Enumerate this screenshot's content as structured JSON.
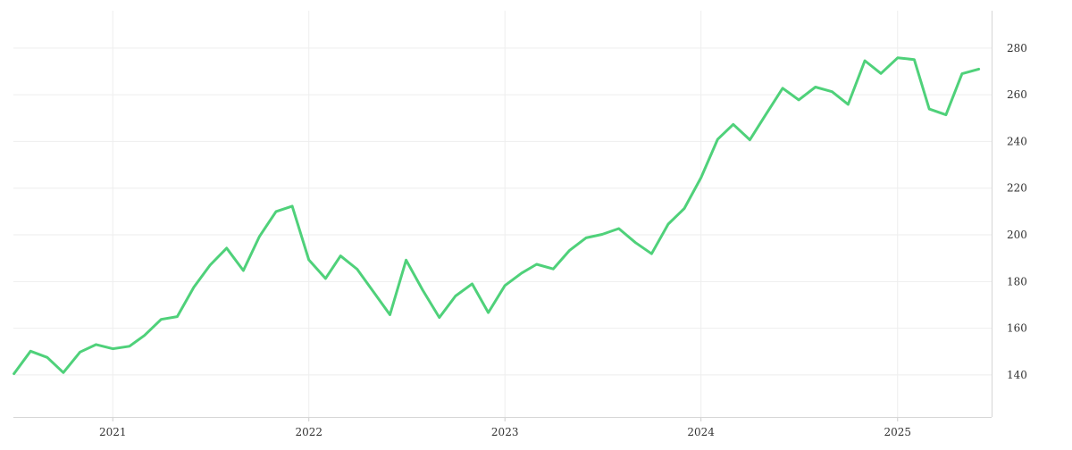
{
  "chart_data": {
    "type": "line",
    "title": "",
    "xlabel": "",
    "ylabel": "",
    "x_ticks": [
      "2021",
      "2022",
      "2023",
      "2024",
      "2025"
    ],
    "y_ticks": [
      140,
      160,
      180,
      200,
      220,
      240,
      260,
      280
    ],
    "ylim": [
      122,
      296
    ],
    "xlim": [
      "2020-06-30",
      "2025-06-25"
    ],
    "grid": true,
    "legend": "none",
    "y_axis_side": "right",
    "series": [
      {
        "color": "#4fd17a",
        "x": [
          "2020-07-01",
          "2020-08-01",
          "2020-09-01",
          "2020-10-01",
          "2020-11-01",
          "2020-12-01",
          "2021-01-01",
          "2021-02-01",
          "2021-03-01",
          "2021-04-01",
          "2021-05-01",
          "2021-06-01",
          "2021-07-01",
          "2021-08-01",
          "2021-09-01",
          "2021-10-01",
          "2021-11-01",
          "2021-12-01",
          "2022-01-01",
          "2022-02-01",
          "2022-03-01",
          "2022-04-01",
          "2022-05-01",
          "2022-06-01",
          "2022-07-01",
          "2022-08-01",
          "2022-09-01",
          "2022-10-01",
          "2022-11-01",
          "2022-12-01",
          "2023-01-01",
          "2023-02-01",
          "2023-03-01",
          "2023-04-01",
          "2023-05-01",
          "2023-06-01",
          "2023-07-01",
          "2023-08-01",
          "2023-09-01",
          "2023-10-01",
          "2023-11-01",
          "2023-12-01",
          "2024-01-01",
          "2024-02-01",
          "2024-03-01",
          "2024-04-01",
          "2024-05-01",
          "2024-06-01",
          "2024-07-01",
          "2024-08-01",
          "2024-09-01",
          "2024-10-01",
          "2024-11-01",
          "2024-12-01",
          "2025-01-01",
          "2025-02-01",
          "2025-03-01",
          "2025-04-01",
          "2025-05-01",
          "2025-06-01"
        ],
        "values": [
          140.5,
          150.2,
          147.5,
          141.0,
          149.8,
          153.0,
          151.2,
          152.3,
          156.9,
          163.8,
          165.0,
          177.6,
          187.0,
          194.3,
          184.7,
          199.3,
          210.0,
          212.3,
          189.3,
          181.3,
          191.0,
          185.3,
          175.7,
          165.8,
          189.2,
          176.3,
          164.6,
          173.8,
          179.0,
          166.7,
          178.3,
          183.6,
          187.4,
          185.4,
          193.3,
          198.7,
          200.2,
          202.7,
          196.7,
          191.9,
          204.6,
          211.3,
          224.5,
          240.9,
          247.3,
          240.7,
          251.6,
          262.8,
          257.8,
          263.3,
          261.3,
          255.9,
          274.6,
          269.1,
          275.8,
          275.1,
          253.9,
          251.4,
          269.0,
          271.0
        ]
      }
    ]
  }
}
